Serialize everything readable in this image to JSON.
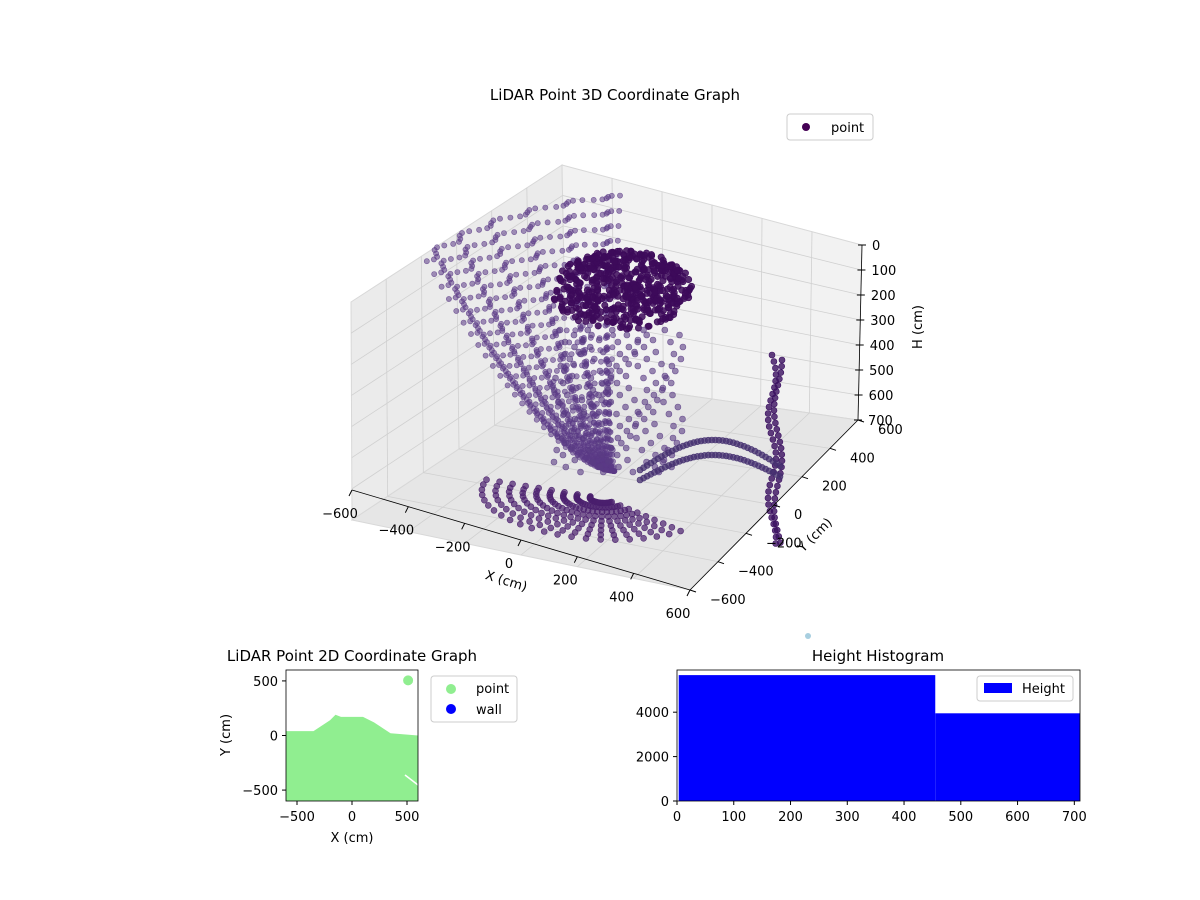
{
  "chart_data": [
    {
      "type": "scatter",
      "title": "LiDAR Point 3D Coordinate Graph",
      "xlabel": "X (cm)",
      "ylabel": "Y (cm)",
      "zlabel": "H (cm)",
      "xlim": [
        -600,
        600
      ],
      "ylim": [
        -600,
        600
      ],
      "zlim": [
        0,
        700
      ],
      "z_inverted": true,
      "xticks": [
        "−600",
        "−400",
        "−200",
        "0",
        "200",
        "400",
        "600"
      ],
      "xtick_values": [
        -600,
        -400,
        -200,
        0,
        200,
        400,
        600
      ],
      "yticks": [
        "−600",
        "−400",
        "−200",
        "0",
        "200",
        "400",
        "600"
      ],
      "ytick_values": [
        -600,
        -400,
        -200,
        0,
        200,
        400,
        600
      ],
      "zticks": [
        "0",
        "100",
        "200",
        "300",
        "400",
        "500",
        "600",
        "700"
      ],
      "ztick_values": [
        0,
        100,
        200,
        300,
        400,
        500,
        600,
        700
      ],
      "grid": true,
      "legend": {
        "placement": "top-right",
        "entries": [
          {
            "name": "point",
            "color": "#440154"
          }
        ]
      },
      "series": [
        {
          "name": "point",
          "color": "#4a1a6b",
          "shapes": [
            {
              "kind": "dense-cap",
              "center": [
                -50,
                450
              ],
              "radius": 160,
              "height": 80
            },
            {
              "kind": "scanline-sweep",
              "from_x": -600,
              "to_x": 400,
              "height_range": [
                0,
                680
              ]
            },
            {
              "kind": "vertical-column",
              "x": 380,
              "y": 100,
              "height_range": [
                350,
                700
              ]
            }
          ]
        }
      ]
    },
    {
      "type": "scatter",
      "title": "LiDAR Point 2D Coordinate Graph",
      "xlabel": "X (cm)",
      "ylabel": "Y (cm)",
      "xlim": [
        -600,
        600
      ],
      "ylim": [
        -600,
        600
      ],
      "xticks": [
        "−500",
        "0",
        "500"
      ],
      "xtick_values": [
        -500,
        0,
        500
      ],
      "yticks": [
        "−500",
        "0",
        "500"
      ],
      "ytick_values": [
        -500,
        0,
        500
      ],
      "grid": false,
      "legend": {
        "placement": "outside-right",
        "entries": [
          {
            "name": "point",
            "color": "#90ee90"
          },
          {
            "name": "wall",
            "color": "#0000ff"
          }
        ]
      },
      "series": [
        {
          "name": "point",
          "color": "#90ee90",
          "region_top_edge": [
            [
              -600,
              40
            ],
            [
              -350,
              40
            ],
            [
              -200,
              140
            ],
            [
              -150,
              190
            ],
            [
              -100,
              170
            ],
            [
              100,
              170
            ],
            [
              200,
              120
            ],
            [
              350,
              20
            ],
            [
              600,
              0
            ]
          ],
          "cluster": [
            510,
            505
          ]
        },
        {
          "name": "wall",
          "color": "#0000ff",
          "values": []
        }
      ]
    },
    {
      "type": "bar",
      "title": "Height Histogram",
      "xlim": [
        0,
        710
      ],
      "ylim": [
        0,
        5900
      ],
      "xticks": [
        "0",
        "100",
        "200",
        "300",
        "400",
        "500",
        "600",
        "700"
      ],
      "xtick_values": [
        0,
        100,
        200,
        300,
        400,
        500,
        600,
        700
      ],
      "yticks": [
        "0",
        "2000",
        "4000"
      ],
      "ytick_values": [
        0,
        2000,
        4000
      ],
      "legend": {
        "placement": "top-right",
        "entries": [
          {
            "name": "Height",
            "color": "#0000ff"
          }
        ]
      },
      "series": [
        {
          "name": "Height",
          "color": "#0000ff",
          "bins": [
            {
              "x0": 3,
              "x1": 455,
              "value": 5670
            },
            {
              "x0": 455,
              "x1": 710,
              "value": 3950
            }
          ]
        }
      ]
    }
  ]
}
